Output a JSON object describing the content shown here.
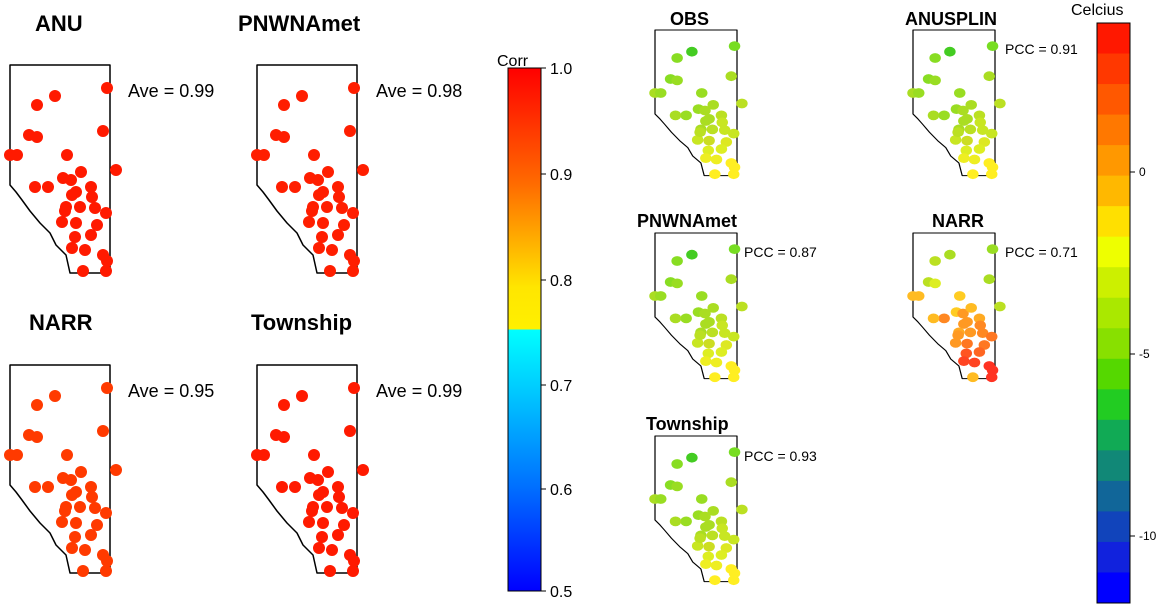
{
  "corr_panels": [
    {
      "title": "ANU",
      "stat": "Ave = 0.99",
      "color": "#ff1a00"
    },
    {
      "title": "PNWNAmet",
      "stat": "Ave = 0.98",
      "color": "#ff1e00"
    },
    {
      "title": "NARR",
      "stat": "Ave = 0.95",
      "color": "#ff3a00"
    },
    {
      "title": "Township",
      "stat": "Ave = 0.99",
      "color": "#ff1a00"
    }
  ],
  "temp_panels": [
    {
      "title": "OBS",
      "stat": "",
      "scheme": "obs"
    },
    {
      "title": "ANUSPLIN",
      "stat": "PCC = 0.91",
      "scheme": "obs"
    },
    {
      "title": "PNWNAmet",
      "stat": "PCC = 0.87",
      "scheme": "obs"
    },
    {
      "title": "NARR",
      "stat": "PCC = 0.71",
      "scheme": "narr"
    },
    {
      "title": "Township",
      "stat": "PCC = 0.93",
      "scheme": "obs"
    }
  ],
  "colorbar_corr": {
    "title": "Corr",
    "ticks": [
      "1.0",
      "0.9",
      "0.8",
      "0.7",
      "0.6",
      "0.5"
    ]
  },
  "colorbar_temp": {
    "title": "Celcius",
    "ticks": [
      "0",
      "-5",
      "-10"
    ]
  }
}
